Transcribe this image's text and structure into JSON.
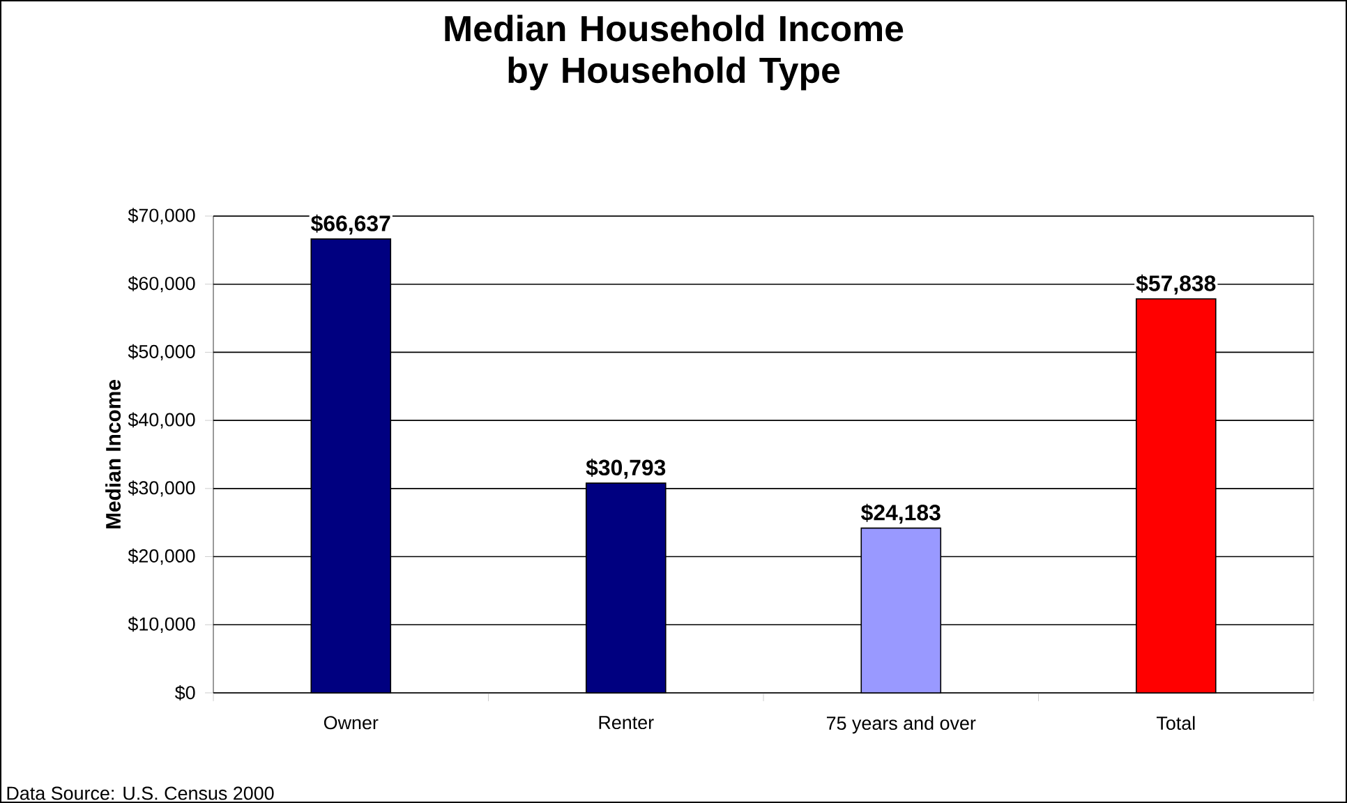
{
  "chart_data": {
    "type": "bar",
    "title": "Median Household Income by Household Type",
    "ylabel": "Median Income",
    "categories": [
      "Owner",
      "Renter",
      "75 years and over",
      "Total"
    ],
    "values": [
      66637,
      30793,
      24183,
      57838
    ],
    "colors": [
      "#000080",
      "#000080",
      "#9999ff",
      "#ff0000"
    ],
    "value_labels": [
      "$66,637",
      "$30,793",
      "$24,183",
      "$57,838"
    ],
    "ylim": [
      0,
      70000
    ],
    "yticks": [
      {
        "value": 0,
        "label": "$0"
      },
      {
        "value": 10000,
        "label": "$10,000"
      },
      {
        "value": 20000,
        "label": "$20,000"
      },
      {
        "value": 30000,
        "label": "$30,000"
      },
      {
        "value": 40000,
        "label": "$40,000"
      },
      {
        "value": 50000,
        "label": "$50,000"
      },
      {
        "value": 60000,
        "label": "$60,000"
      },
      {
        "value": 70000,
        "label": "$70,000"
      }
    ],
    "grid": "y",
    "annotations": [
      "Data Source: U.S. Census 2000"
    ]
  }
}
